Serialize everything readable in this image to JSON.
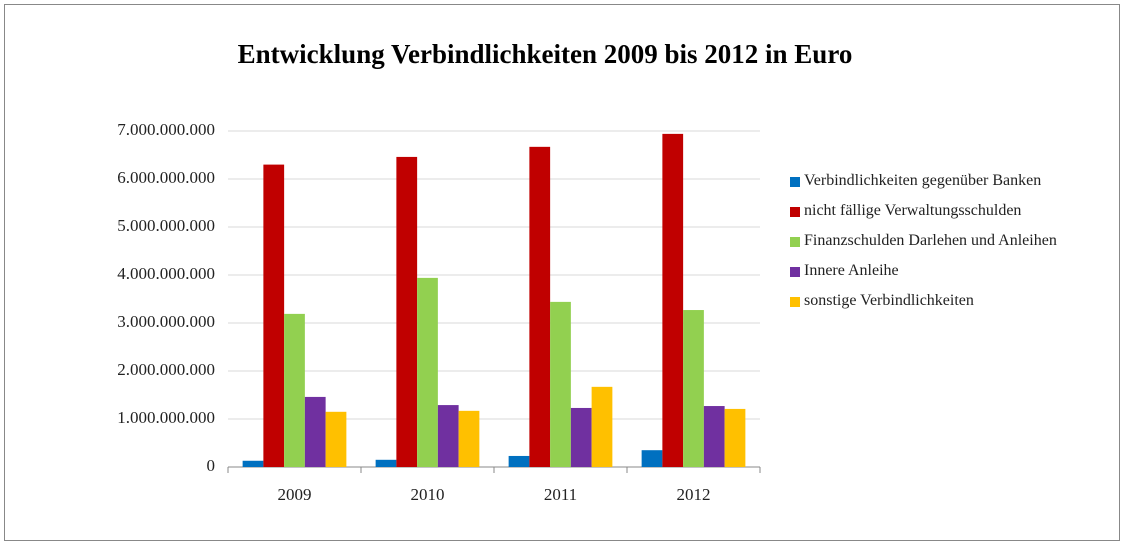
{
  "chart_data": {
    "type": "bar",
    "title": "Entwicklung Verbindlichkeiten  2009 bis 2012 in Euro",
    "categories": [
      "2009",
      "2010",
      "2011",
      "2012"
    ],
    "series": [
      {
        "name": "Verbindlichkeiten gegenüber Banken",
        "color": "#0070c0",
        "values": [
          130000000,
          150000000,
          230000000,
          350000000
        ]
      },
      {
        "name": "nicht fällige Verwaltungsschulden",
        "color": "#c00000",
        "values": [
          6300000000,
          6460000000,
          6670000000,
          6940000000
        ]
      },
      {
        "name": "Finanzschulden Darlehen und Anleihen",
        "color": "#92d050",
        "values": [
          3190000000,
          3940000000,
          3440000000,
          3270000000
        ]
      },
      {
        "name": "Innere Anleihe",
        "color": "#7030a0",
        "values": [
          1460000000,
          1290000000,
          1230000000,
          1270000000
        ]
      },
      {
        "name": "sonstige Verbindlichkeiten",
        "color": "#ffc000",
        "values": [
          1150000000,
          1170000000,
          1670000000,
          1210000000
        ]
      }
    ],
    "ylim": [
      0,
      7000000000
    ],
    "yticks": [
      0,
      {
        "value": 1000000000,
        "label": "1.000.000.000"
      },
      {
        "value": 2000000000,
        "label": "2.000.000.000"
      },
      {
        "value": 3000000000,
        "label": "3.000.000.000"
      },
      {
        "value": 4000000000,
        "label": "4.000.000.000"
      },
      {
        "value": 5000000000,
        "label": "5.000.000.000"
      },
      {
        "value": 6000000000,
        "label": "6.000.000.000"
      },
      {
        "value": 7000000000,
        "label": "7.000.000.000"
      }
    ],
    "grid": true,
    "legend": "right"
  }
}
